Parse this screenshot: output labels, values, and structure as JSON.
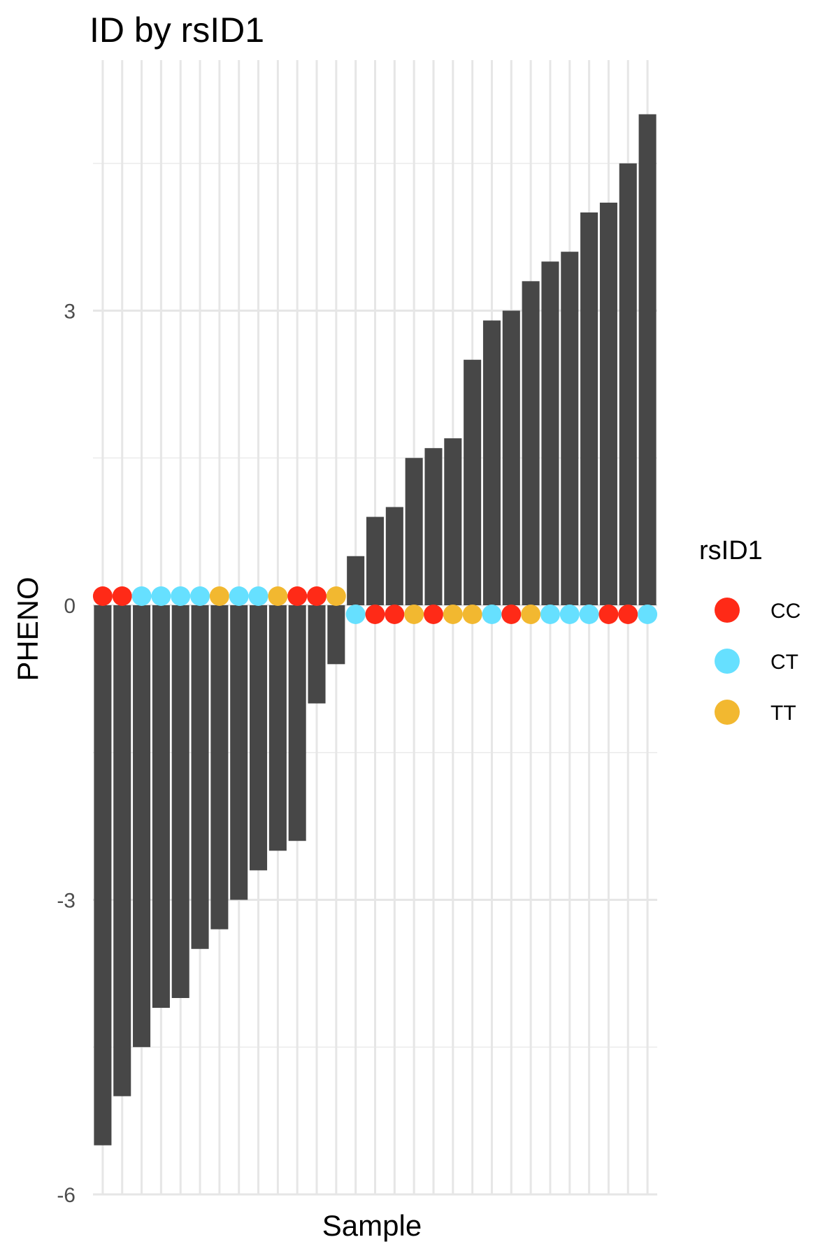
{
  "chart_data": {
    "type": "bar",
    "title": "ID by rsID1",
    "xlabel": "Sample",
    "ylabel": "PHENO",
    "ylim": [
      -6,
      5.5
    ],
    "y_ticks": [
      -6,
      -3,
      0,
      3
    ],
    "y_tick_labels": [
      "-6",
      "-3",
      "0",
      "3"
    ],
    "y_minor_gridlines": [
      -4.5,
      -1.5,
      1.5,
      4.5
    ],
    "grid": true,
    "bar_color": "#474747",
    "values": [
      -5.5,
      -5.0,
      -4.5,
      -4.1,
      -4.0,
      -3.5,
      -3.3,
      -3.0,
      -2.7,
      -2.5,
      -2.4,
      -1.0,
      -0.6,
      0.5,
      0.9,
      1.0,
      1.5,
      1.6,
      1.7,
      2.5,
      2.9,
      3.0,
      3.3,
      3.5,
      3.6,
      4.0,
      4.1,
      4.5,
      5.0
    ],
    "genotypes": [
      "CC",
      "CC",
      "CT",
      "CT",
      "CT",
      "CT",
      "TT",
      "CT",
      "CT",
      "TT",
      "CC",
      "CC",
      "TT",
      "CT",
      "CC",
      "CC",
      "TT",
      "CC",
      "TT",
      "TT",
      "CT",
      "CC",
      "TT",
      "CT",
      "CT",
      "CT",
      "CC",
      "CC",
      "CT"
    ],
    "legend": {
      "title": "rsID1",
      "placement": "right",
      "entries": [
        {
          "label": "CC",
          "color": "#FF2A17"
        },
        {
          "label": "CT",
          "color": "#66E0FF"
        },
        {
          "label": "TT",
          "color": "#F2B830"
        }
      ]
    }
  }
}
